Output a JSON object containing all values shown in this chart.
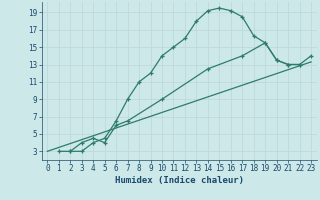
{
  "xlabel": "Humidex (Indice chaleur)",
  "bg_color": "#cce8e8",
  "grid_color": "#b8d4d4",
  "line_color": "#2e7b6e",
  "xlim": [
    -0.5,
    23.5
  ],
  "ylim": [
    2,
    20.2
  ],
  "xticks": [
    0,
    1,
    2,
    3,
    4,
    5,
    6,
    7,
    8,
    9,
    10,
    11,
    12,
    13,
    14,
    15,
    16,
    17,
    18,
    19,
    20,
    21,
    22,
    23
  ],
  "yticks": [
    3,
    5,
    7,
    9,
    11,
    13,
    15,
    17,
    19
  ],
  "curve1_x": [
    2,
    3,
    4,
    5,
    6,
    7,
    8,
    9,
    10,
    11,
    12,
    13,
    14,
    15,
    16,
    17,
    18,
    19,
    20,
    21,
    22
  ],
  "curve1_y": [
    3,
    3,
    4,
    4.5,
    6.5,
    9,
    11,
    12,
    14,
    15,
    16,
    18,
    19.2,
    19.5,
    19.2,
    18.5,
    16.3,
    15.5,
    13.5,
    13,
    13
  ],
  "curve2_x": [
    1,
    2,
    3,
    4,
    5,
    6,
    7,
    10,
    14,
    17,
    19,
    20,
    21,
    22,
    23
  ],
  "curve2_y": [
    3,
    3,
    4,
    4.5,
    4,
    6,
    6.5,
    9,
    12.5,
    14,
    15.5,
    13.5,
    13,
    13,
    14
  ],
  "curve3_x": [
    0,
    23
  ],
  "curve3_y": [
    3,
    13.3
  ]
}
